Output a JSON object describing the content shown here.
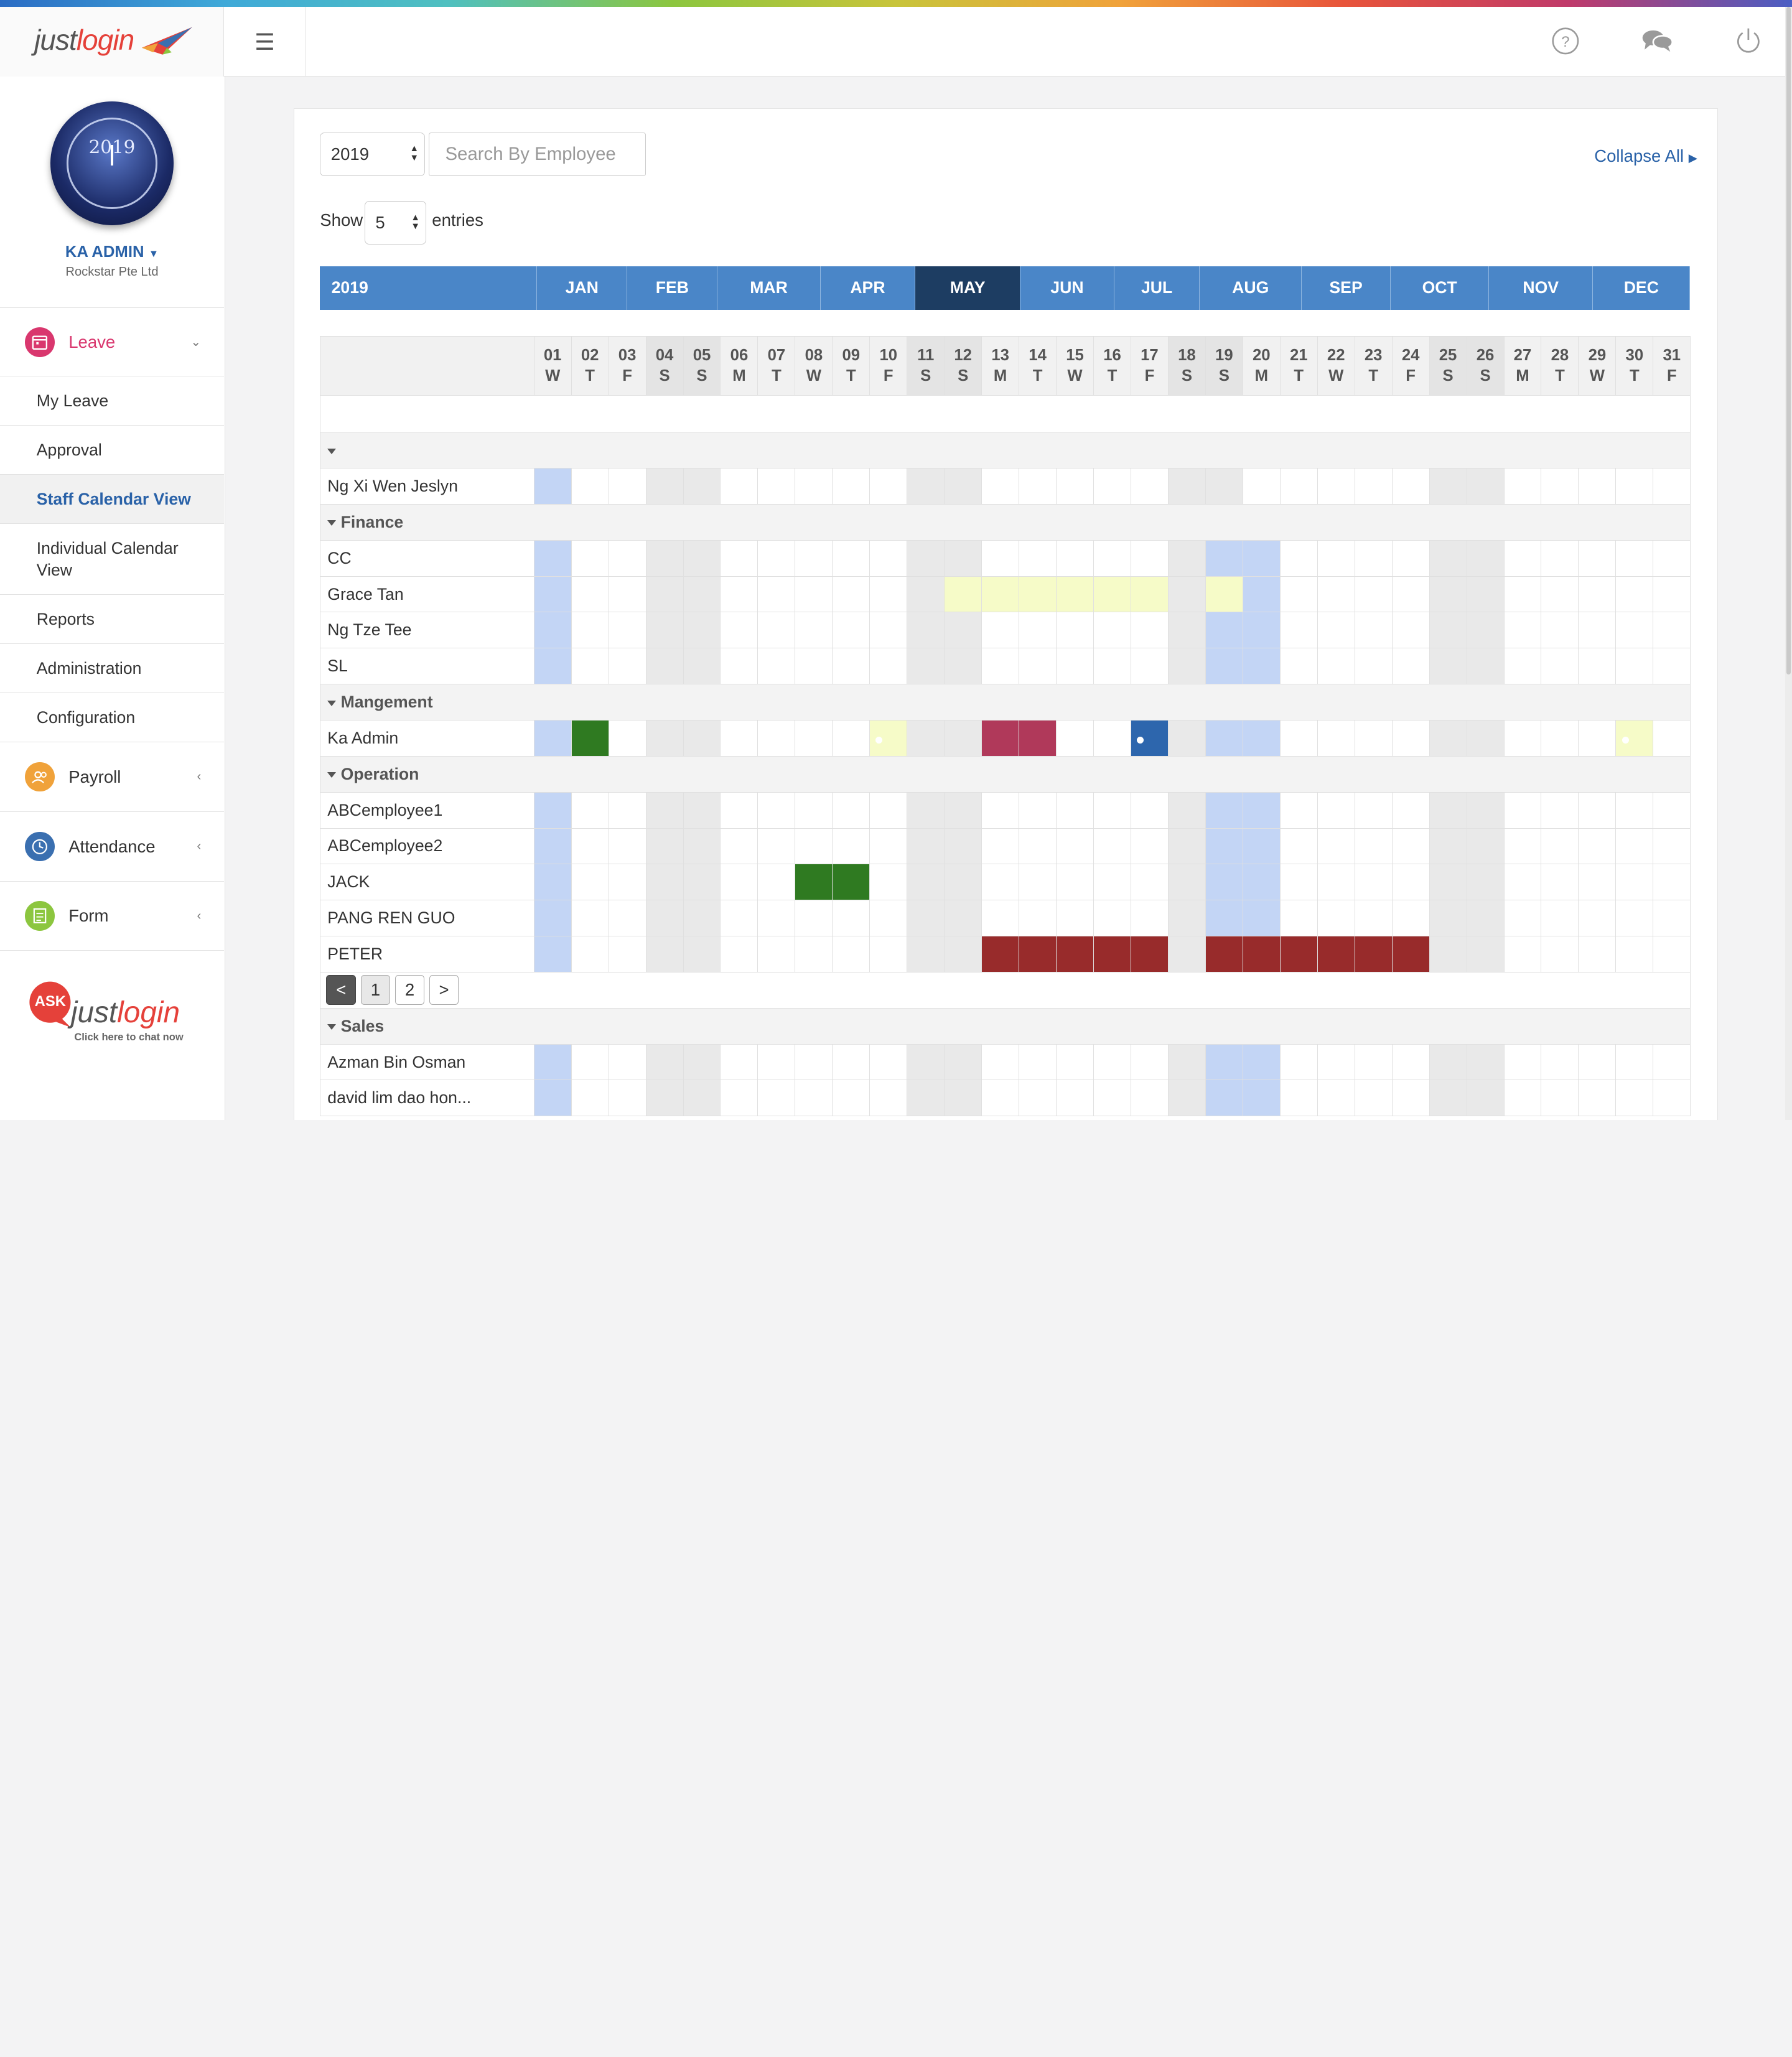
{
  "brand": {
    "logo_main": "just",
    "logo_accent": "login"
  },
  "topbar": {
    "menu_icon": "hamburger-icon",
    "help_icon": "help-circle-icon",
    "chat_icon": "chat-bubbles-icon",
    "power_icon": "power-icon"
  },
  "user": {
    "name": "KA ADMIN",
    "company": "Rockstar Pte Ltd",
    "avatar_text": "2019"
  },
  "nav": {
    "leave": {
      "label": "Leave",
      "icon": "calendar-icon",
      "color": "#d9376e"
    },
    "leave_items": [
      {
        "label": "My Leave"
      },
      {
        "label": "Approval"
      },
      {
        "label": "Staff Calendar View"
      },
      {
        "label": "Individual Calendar View"
      },
      {
        "label": "Reports"
      },
      {
        "label": "Administration"
      },
      {
        "label": "Configuration"
      }
    ],
    "payroll": {
      "label": "Payroll",
      "icon": "people-icon",
      "color": "#f0a23a"
    },
    "attendance": {
      "label": "Attendance",
      "icon": "clock-icon",
      "color": "#3a6fb0"
    },
    "form": {
      "label": "Form",
      "icon": "form-icon",
      "color": "#8cc63f"
    }
  },
  "ask": {
    "badge": "ASK",
    "logo_main": "just",
    "logo_accent": "login",
    "caption": "Click here to chat now"
  },
  "filters": {
    "year": "2019",
    "search_placeholder": "Search By Employee",
    "collapse_label": "Collapse All",
    "show_label": "Show",
    "entries_value": "5",
    "entries_label": "entries"
  },
  "months": {
    "year": "2019",
    "labels": [
      "JAN",
      "FEB",
      "MAR",
      "APR",
      "MAY",
      "JUN",
      "JUL",
      "AUG",
      "SEP",
      "OCT",
      "NOV",
      "DEC"
    ],
    "current": "MAY"
  },
  "days": [
    {
      "n": "01",
      "d": "W"
    },
    {
      "n": "02",
      "d": "T"
    },
    {
      "n": "03",
      "d": "F"
    },
    {
      "n": "04",
      "d": "S"
    },
    {
      "n": "05",
      "d": "S"
    },
    {
      "n": "06",
      "d": "M"
    },
    {
      "n": "07",
      "d": "T"
    },
    {
      "n": "08",
      "d": "W"
    },
    {
      "n": "09",
      "d": "T"
    },
    {
      "n": "10",
      "d": "F"
    },
    {
      "n": "11",
      "d": "S"
    },
    {
      "n": "12",
      "d": "S"
    },
    {
      "n": "13",
      "d": "M"
    },
    {
      "n": "14",
      "d": "T"
    },
    {
      "n": "15",
      "d": "W"
    },
    {
      "n": "16",
      "d": "T"
    },
    {
      "n": "17",
      "d": "F"
    },
    {
      "n": "18",
      "d": "S"
    },
    {
      "n": "19",
      "d": "S"
    },
    {
      "n": "20",
      "d": "M"
    },
    {
      "n": "21",
      "d": "T"
    },
    {
      "n": "22",
      "d": "W"
    },
    {
      "n": "23",
      "d": "T"
    },
    {
      "n": "24",
      "d": "F"
    },
    {
      "n": "25",
      "d": "S"
    },
    {
      "n": "26",
      "d": "S"
    },
    {
      "n": "27",
      "d": "M"
    },
    {
      "n": "28",
      "d": "T"
    },
    {
      "n": "29",
      "d": "W"
    },
    {
      "n": "30",
      "d": "T"
    },
    {
      "n": "31",
      "d": "F"
    }
  ],
  "legend_colors": {
    "holiday": "#c3d5f5",
    "weekend": "#e9e9e9",
    "green": "#2f7a21",
    "yellow": "#f6fbc8",
    "pink": "#b0395a",
    "red": "#982b2b",
    "blue": "#2d66ad"
  },
  "groups": [
    {
      "name": "",
      "rows": [
        {
          "name": "Ng Xi Wen Jeslyn",
          "cells": {}
        }
      ]
    },
    {
      "name": "Finance",
      "rows": [
        {
          "name": "CC",
          "cells": {
            "19": "hol",
            "20": "hol"
          }
        },
        {
          "name": "Grace Tan",
          "cells": {
            "12": "y",
            "13": "y",
            "14": "y",
            "15": "y",
            "16": "y",
            "17": "y",
            "19": "y",
            "20": "hol"
          }
        },
        {
          "name": "Ng Tze Tee",
          "cells": {
            "19": "hol",
            "20": "hol"
          }
        },
        {
          "name": "SL",
          "cells": {
            "19": "hol",
            "20": "hol"
          }
        }
      ]
    },
    {
      "name": "Mangement",
      "rows": [
        {
          "name": "Ka Admin",
          "cells": {
            "02": "g",
            "10": "y.",
            "13": "p",
            "14": "p",
            "17": "b.",
            "19": "hol",
            "20": "hol",
            "30": "y."
          }
        }
      ]
    },
    {
      "name": "Operation",
      "rows": [
        {
          "name": "ABCemployee1",
          "cells": {
            "19": "hol",
            "20": "hol"
          }
        },
        {
          "name": "ABCemployee2",
          "cells": {
            "19": "hol",
            "20": "hol"
          }
        },
        {
          "name": "JACK",
          "cells": {
            "08": "g",
            "09": "g",
            "19": "hol",
            "20": "hol"
          }
        },
        {
          "name": "PANG REN GUO",
          "cells": {
            "19": "hol",
            "20": "hol"
          }
        },
        {
          "name": "PETER",
          "cells": {
            "13": "r",
            "14": "r",
            "15": "r",
            "16": "r",
            "17": "r",
            "19": "r",
            "20": "r",
            "21": "r",
            "22": "r",
            "23": "r",
            "24": "r"
          }
        }
      ],
      "pagination": {
        "prev": "<",
        "pages": [
          "1",
          "2"
        ],
        "next": ">"
      }
    },
    {
      "name": "Sales",
      "rows": [
        {
          "name": "Azman Bin Osman",
          "cells": {
            "19": "hol",
            "20": "hol"
          }
        },
        {
          "name": "david lim dao hon...",
          "cells": {
            "19": "hol",
            "20": "hol"
          }
        }
      ]
    }
  ]
}
